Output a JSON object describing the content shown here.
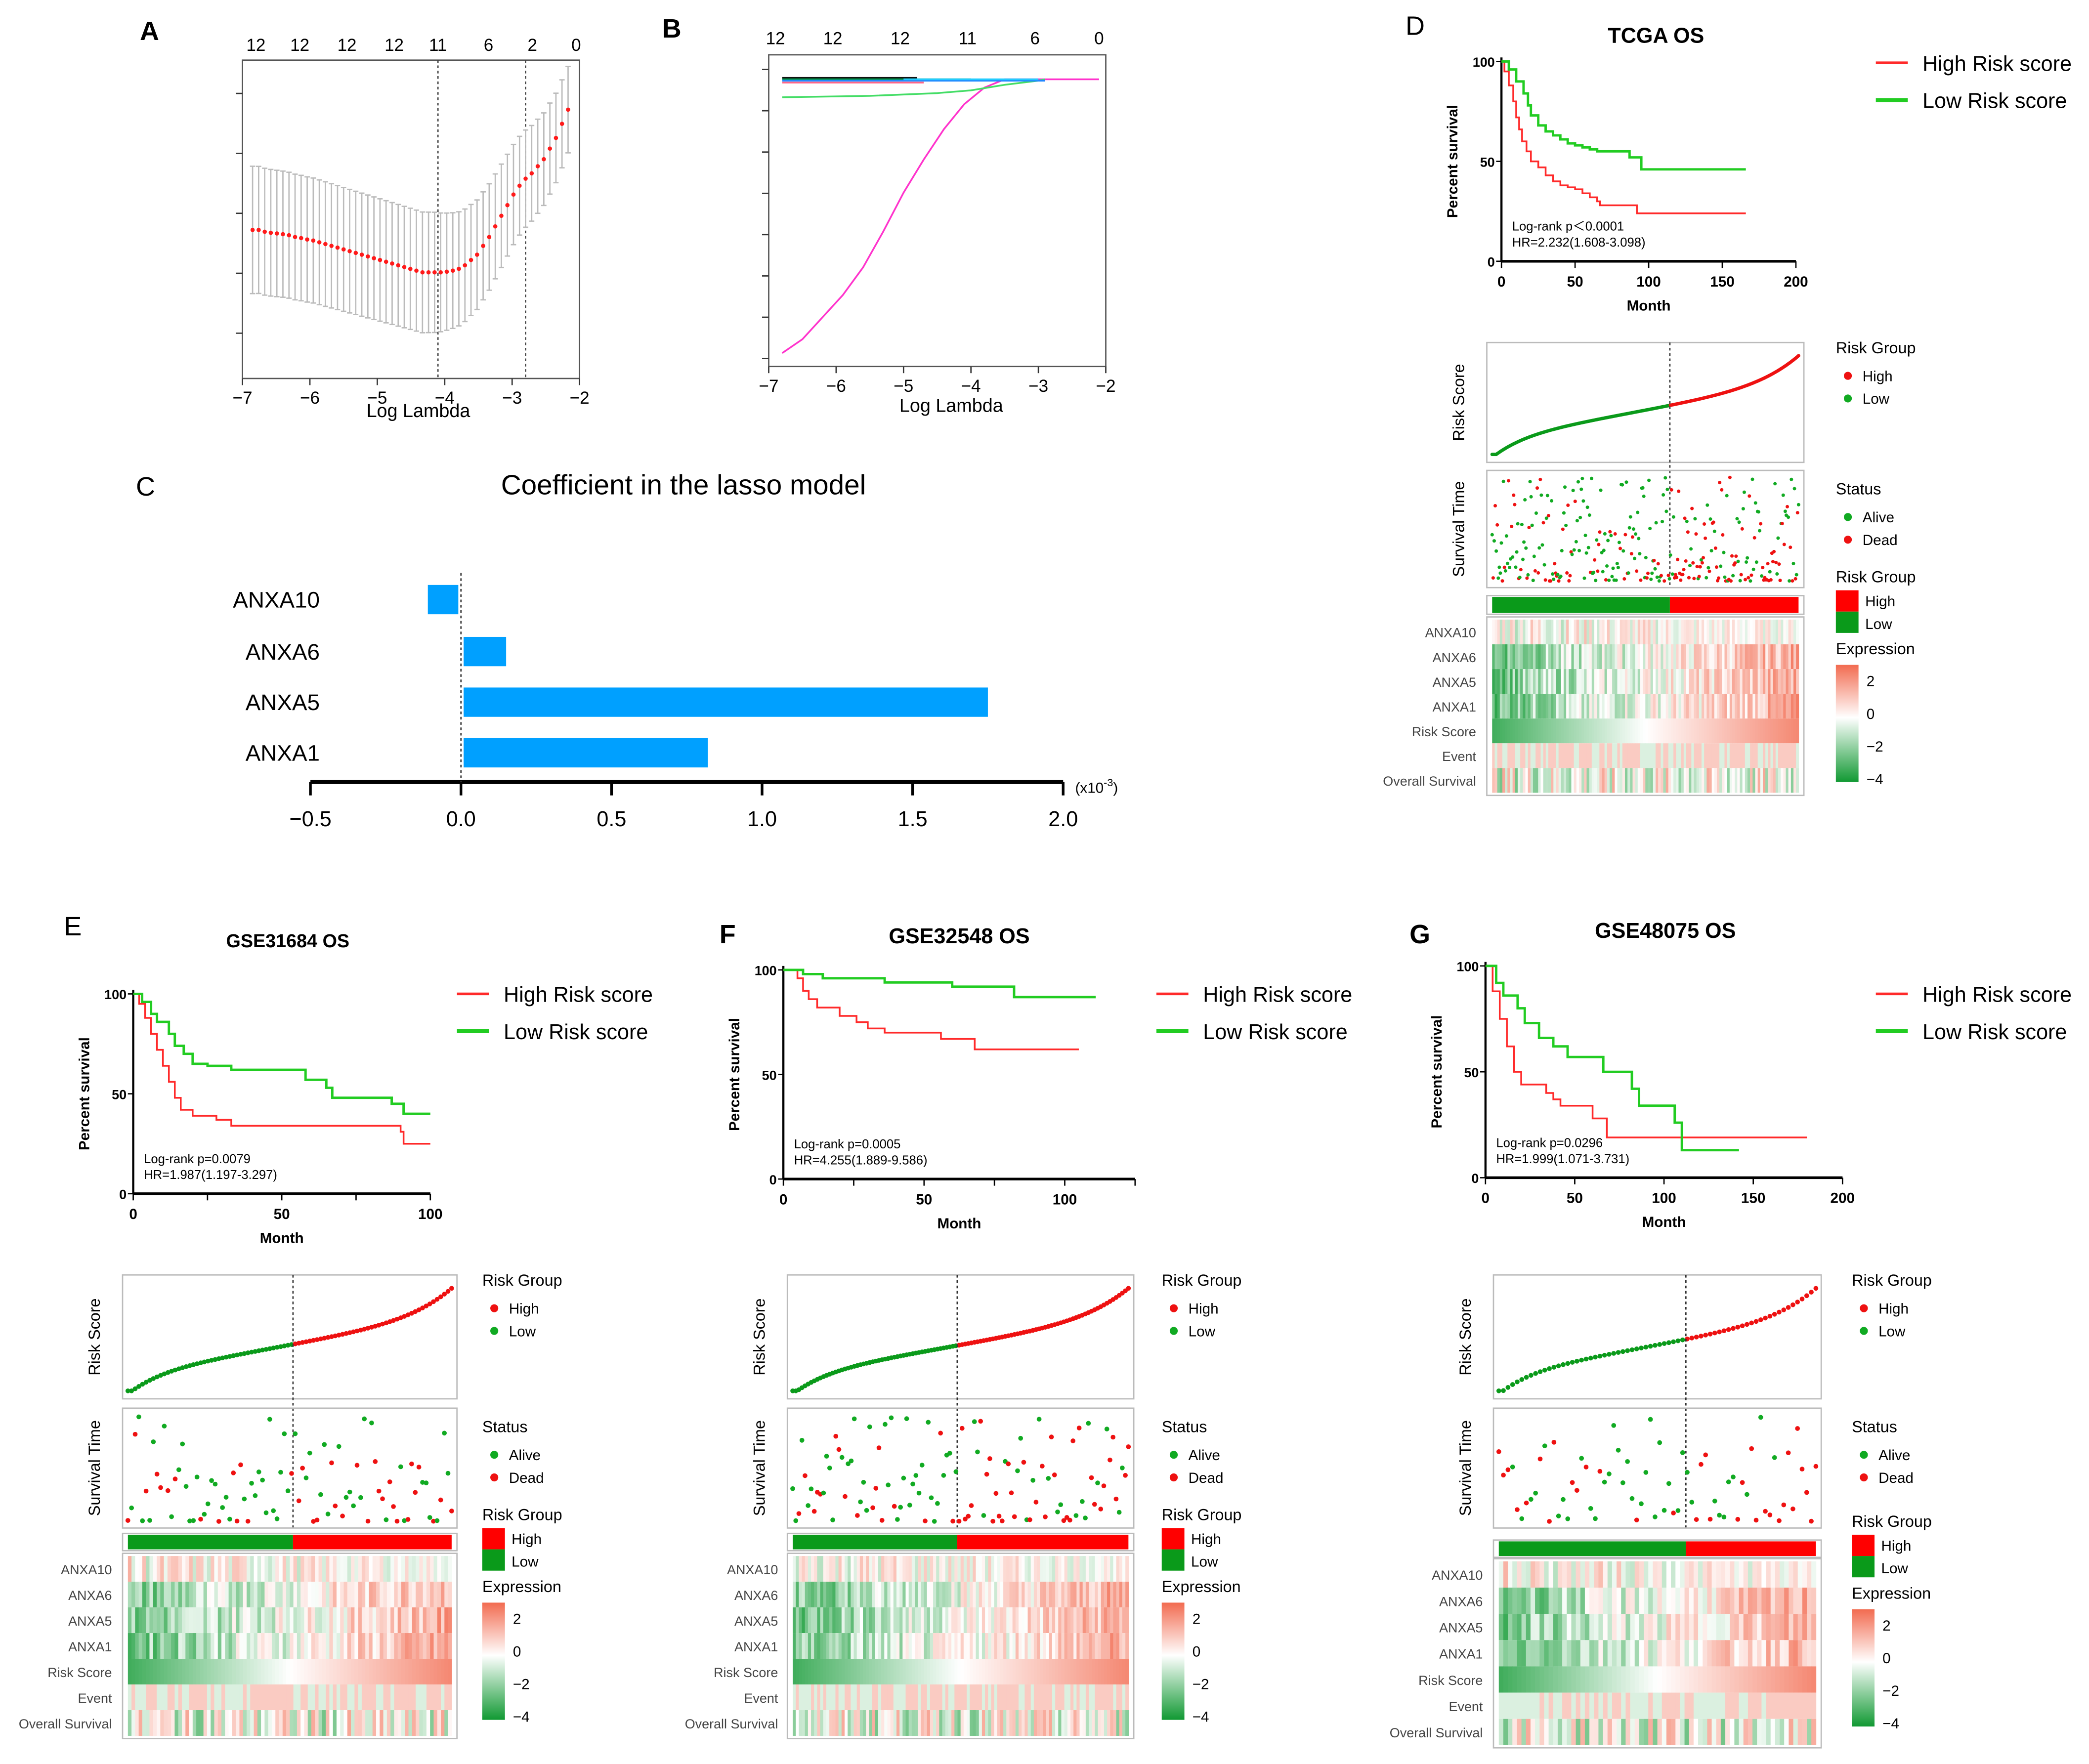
{
  "panel_labels": {
    "A": "A",
    "B": "B",
    "C": "C",
    "D": "D",
    "E": "E",
    "F": "F",
    "G": "G"
  },
  "colors": {
    "high": "#ff2a2a",
    "low": "#22cc22",
    "low_dark": "#0a9a1a",
    "bar": "#00a0ff",
    "heat_high": "#f26b50",
    "heat_low": "#119933",
    "grey": "#bbbbbb"
  },
  "chart_data": [
    {
      "id": "A",
      "type": "scatter",
      "title": "",
      "xlabel": "Log Lambda",
      "ylabel": "",
      "xlim": [
        -7,
        -2
      ],
      "xticks": [
        "−7",
        "−6",
        "−5",
        "−4",
        "−3",
        "−2"
      ],
      "top_ticks": [
        "12",
        "12",
        "12",
        "12",
        "11",
        "6",
        "2",
        "0"
      ],
      "top_tick_positions": [
        -6.8,
        -6.15,
        -5.45,
        -4.75,
        -4.1,
        -3.35,
        -2.7,
        -2.05
      ],
      "vlines": [
        -4.1,
        -2.8
      ],
      "series": [
        {
          "name": "cv-error",
          "x": [
            -6.85,
            -6.76,
            -6.67,
            -6.58,
            -6.49,
            -6.4,
            -6.31,
            -6.22,
            -6.13,
            -6.04,
            -5.95,
            -5.86,
            -5.77,
            -5.68,
            -5.59,
            -5.5,
            -5.41,
            -5.32,
            -5.23,
            -5.14,
            -5.05,
            -4.96,
            -4.87,
            -4.78,
            -4.69,
            -4.6,
            -4.51,
            -4.42,
            -4.33,
            -4.24,
            -4.15,
            -4.06,
            -3.97,
            -3.88,
            -3.79,
            -3.7,
            -3.61,
            -3.52,
            -3.43,
            -3.34,
            -3.25,
            -3.16,
            -3.07,
            -2.98,
            -2.89,
            -2.8,
            -2.71,
            -2.62,
            -2.53,
            -2.44,
            -2.35,
            -2.26,
            -2.17
          ],
          "y": [
            0.62,
            0.62,
            0.615,
            0.612,
            0.61,
            0.608,
            0.605,
            0.6,
            0.597,
            0.593,
            0.59,
            0.585,
            0.58,
            0.575,
            0.57,
            0.565,
            0.56,
            0.555,
            0.55,
            0.545,
            0.54,
            0.535,
            0.53,
            0.525,
            0.52,
            0.515,
            0.51,
            0.505,
            0.5,
            0.5,
            0.5,
            0.5,
            0.502,
            0.505,
            0.51,
            0.52,
            0.535,
            0.55,
            0.575,
            0.6,
            0.63,
            0.66,
            0.69,
            0.72,
            0.745,
            0.765,
            0.78,
            0.8,
            0.82,
            0.85,
            0.88,
            0.92,
            0.96
          ],
          "err": [
            0.18,
            0.18,
            0.18,
            0.18,
            0.18,
            0.18,
            0.18,
            0.18,
            0.18,
            0.18,
            0.18,
            0.18,
            0.18,
            0.18,
            0.18,
            0.18,
            0.18,
            0.18,
            0.18,
            0.18,
            0.18,
            0.18,
            0.18,
            0.18,
            0.18,
            0.18,
            0.18,
            0.18,
            0.18,
            0.18,
            0.18,
            0.18,
            0.18,
            0.18,
            0.18,
            0.18,
            0.18,
            0.18,
            0.18,
            0.18,
            0.18,
            0.18,
            0.18,
            0.18,
            0.18,
            0.18,
            0.18,
            0.18,
            0.18,
            0.18,
            0.18,
            0.18,
            0.18
          ]
        }
      ]
    },
    {
      "id": "B",
      "type": "line",
      "xlabel": "Log Lambda",
      "xlim": [
        -7,
        -2
      ],
      "xticks": [
        "−7",
        "−6",
        "−5",
        "−4",
        "−3",
        "−2"
      ],
      "top_ticks": [
        "12",
        "12",
        "12",
        "11",
        "6",
        "0"
      ],
      "top_tick_positions": [
        -6.9,
        -6.05,
        -5.05,
        -4.05,
        -3.05,
        -2.1
      ],
      "ylim": [
        -1.0,
        0.05
      ],
      "series": [
        {
          "name": "coef-1",
          "color": "#ff33cc",
          "x": [
            -6.8,
            -6.5,
            -6.2,
            -5.9,
            -5.6,
            -5.3,
            -5.0,
            -4.7,
            -4.4,
            -4.1,
            -3.8,
            -3.5,
            -3.3,
            -3.0,
            -2.1
          ],
          "y": [
            -0.99,
            -0.94,
            -0.86,
            -0.78,
            -0.68,
            -0.55,
            -0.41,
            -0.29,
            -0.18,
            -0.09,
            -0.03,
            0.0,
            0.0,
            0.0,
            0.0
          ]
        },
        {
          "name": "coef-2",
          "color": "#44dd66",
          "x": [
            -6.8,
            -5.5,
            -4.5,
            -4.0,
            -3.5,
            -3.0,
            -2.9
          ],
          "y": [
            -0.065,
            -0.06,
            -0.05,
            -0.04,
            -0.02,
            -0.005,
            0.0
          ]
        },
        {
          "name": "coef-3",
          "color": "#111111",
          "x": [
            -6.8,
            -4.8
          ],
          "y": [
            0.005,
            0.005
          ]
        },
        {
          "name": "coef-4",
          "color": "#009944",
          "x": [
            -6.8,
            -4.0
          ],
          "y": [
            0.0,
            0.0
          ]
        },
        {
          "name": "coef-5",
          "color": "#ff6688",
          "x": [
            -6.8,
            -4.7
          ],
          "y": [
            -0.012,
            -0.012
          ]
        },
        {
          "name": "coef-6",
          "color": "#2288ff",
          "x": [
            -6.8,
            -2.9
          ],
          "y": [
            -0.005,
            -0.005
          ]
        },
        {
          "name": "coef-7",
          "color": "#22ccff",
          "x": [
            -5.0,
            -3.0
          ],
          "y": [
            0.0,
            0.0
          ]
        }
      ]
    },
    {
      "id": "C",
      "type": "bar",
      "orientation": "horizontal",
      "title": "Coefficient in the lasso model",
      "categories": [
        "ANXA10",
        "ANXA6",
        "ANXA5",
        "ANXA1"
      ],
      "values": [
        -0.11,
        0.15,
        1.75,
        0.82
      ],
      "xlim": [
        -0.5,
        2.0
      ],
      "xticks": [
        "−0.5",
        "0.0",
        "0.5",
        "1.0",
        "1.5",
        "2.0"
      ],
      "xtick_values": [
        -0.5,
        0.0,
        0.5,
        1.0,
        1.5,
        2.0
      ],
      "unit_label": "(x10",
      "unit_exp": "-3",
      "unit_close": ")"
    },
    {
      "id": "D-km",
      "type": "line",
      "title": "TCGA OS",
      "xlabel": "Month",
      "ylabel": "Percent survival",
      "xlim": [
        0,
        200
      ],
      "ylim": [
        0,
        100
      ],
      "xticks": [
        "0",
        "50",
        "100",
        "150",
        "200"
      ],
      "yticks": [
        "0",
        "50",
        "100"
      ],
      "annotation": [
        "Log-rank p＜0.0001",
        "HR=2.232(1.608-3.098)"
      ],
      "legend": [
        "High Risk score",
        "Low Risk score"
      ],
      "series": [
        {
          "name": "High Risk score",
          "x": [
            0,
            2,
            5,
            8,
            10,
            12,
            14,
            17,
            20,
            25,
            30,
            35,
            40,
            45,
            50,
            55,
            60,
            65,
            67,
            80,
            88,
            92,
            100,
            166
          ],
          "y": [
            100,
            95,
            88,
            80,
            72,
            66,
            60,
            55,
            50,
            47,
            43,
            40,
            38,
            37,
            36,
            34,
            32,
            30,
            28,
            28,
            28,
            24,
            24,
            24
          ]
        },
        {
          "name": "Low Risk score",
          "x": [
            0,
            5,
            10,
            15,
            18,
            20,
            25,
            30,
            35,
            40,
            45,
            50,
            55,
            60,
            65,
            80,
            87,
            90,
            95,
            100,
            166
          ],
          "y": [
            100,
            96,
            90,
            84,
            78,
            73,
            68,
            65,
            63,
            61,
            59,
            58,
            57,
            56,
            55,
            55,
            52,
            52,
            46,
            46,
            46
          ]
        }
      ]
    },
    {
      "id": "E-km",
      "type": "line",
      "title": "GSE31684 OS",
      "xlabel": "Month",
      "ylabel": "Percent survival",
      "xlim": [
        0,
        100
      ],
      "ylim": [
        0,
        100
      ],
      "xticks": [
        "0",
        "50",
        "100"
      ],
      "yticks": [
        "0",
        "50",
        "100"
      ],
      "annotation": [
        "Log-rank p=0.0079",
        "HR=1.987(1.197-3.297)"
      ],
      "legend": [
        "High Risk score",
        "Low Risk score"
      ],
      "series": [
        {
          "name": "High Risk score",
          "x": [
            0,
            2,
            4,
            6,
            8,
            10,
            12,
            14,
            16,
            20,
            28,
            33,
            80,
            90,
            91,
            100
          ],
          "y": [
            100,
            95,
            88,
            80,
            72,
            64,
            56,
            48,
            42,
            39,
            37,
            34,
            34,
            31,
            25,
            25
          ]
        },
        {
          "name": "Low Risk score",
          "x": [
            0,
            3,
            6,
            8,
            12,
            14,
            17,
            20,
            25,
            33,
            52,
            58,
            65,
            67,
            85,
            87,
            91,
            100
          ],
          "y": [
            100,
            96,
            90,
            86,
            80,
            74,
            70,
            65,
            64,
            62,
            62,
            57,
            53,
            48,
            48,
            45,
            40,
            40
          ]
        }
      ]
    },
    {
      "id": "F-km",
      "type": "line",
      "title": "GSE32548 OS",
      "xlabel": "Month",
      "ylabel": "Percent survival",
      "xlim": [
        0,
        125
      ],
      "ylim": [
        0,
        100
      ],
      "xticks": [
        "0",
        "50",
        "100"
      ],
      "yticks": [
        "0",
        "50",
        "100"
      ],
      "annotation": [
        "Log-rank p=0.0005",
        "HR=4.255(1.889-9.586)"
      ],
      "legend": [
        "High Risk score",
        "Low Risk score"
      ],
      "series": [
        {
          "name": "High Risk score",
          "x": [
            0,
            5,
            7,
            9,
            12,
            20,
            26,
            30,
            36,
            56,
            68,
            105
          ],
          "y": [
            100,
            96,
            90,
            86,
            82,
            78,
            75,
            72,
            70,
            67,
            62,
            62
          ]
        },
        {
          "name": "Low Risk score",
          "x": [
            0,
            7,
            14,
            30,
            36,
            60,
            82,
            111
          ],
          "y": [
            100,
            98,
            96,
            96,
            94,
            92,
            87,
            87
          ]
        }
      ]
    },
    {
      "id": "G-km",
      "type": "line",
      "title": "GSE48075 OS",
      "xlabel": "Month",
      "ylabel": "Percent survival",
      "xlim": [
        0,
        200
      ],
      "ylim": [
        0,
        100
      ],
      "xticks": [
        "0",
        "50",
        "100",
        "150",
        "200"
      ],
      "yticks": [
        "0",
        "50",
        "100"
      ],
      "annotation": [
        "Log-rank p=0.0296",
        "HR=1.999(1.071-3.731)"
      ],
      "legend": [
        "High Risk score",
        "Low Risk score"
      ],
      "series": [
        {
          "name": "High Risk score",
          "x": [
            0,
            4,
            8,
            12,
            16,
            20,
            34,
            38,
            42,
            60,
            68,
            180
          ],
          "y": [
            100,
            88,
            75,
            62,
            50,
            44,
            40,
            37,
            34,
            28,
            19,
            19
          ]
        },
        {
          "name": "Low Risk score",
          "x": [
            0,
            6,
            10,
            18,
            22,
            30,
            38,
            46,
            66,
            82,
            86,
            106,
            110,
            142
          ],
          "y": [
            100,
            92,
            86,
            80,
            73,
            66,
            62,
            57,
            50,
            42,
            34,
            26,
            13,
            13
          ]
        }
      ]
    }
  ],
  "risk_panels": {
    "labels": {
      "risk_score": "Risk Score",
      "survival_time": "Survival Time",
      "risk_group": "Risk Group",
      "high": "High",
      "low": "Low",
      "status": "Status",
      "alive": "Alive",
      "dead": "Dead",
      "expression": "Expression"
    },
    "heat_rows": [
      "ANXA10",
      "ANXA6",
      "ANXA5",
      "ANXA1",
      "Risk Score",
      "Event",
      "Overall Survival"
    ],
    "scale_ticks": [
      "2",
      "0",
      "−2",
      "−4"
    ],
    "panels": [
      {
        "id": "D",
        "n": 300,
        "cut": 0.58
      },
      {
        "id": "E",
        "n": 90,
        "cut": 0.51
      },
      {
        "id": "F",
        "n": 110,
        "cut": 0.49
      },
      {
        "id": "G",
        "n": 70,
        "cut": 0.59
      }
    ]
  }
}
